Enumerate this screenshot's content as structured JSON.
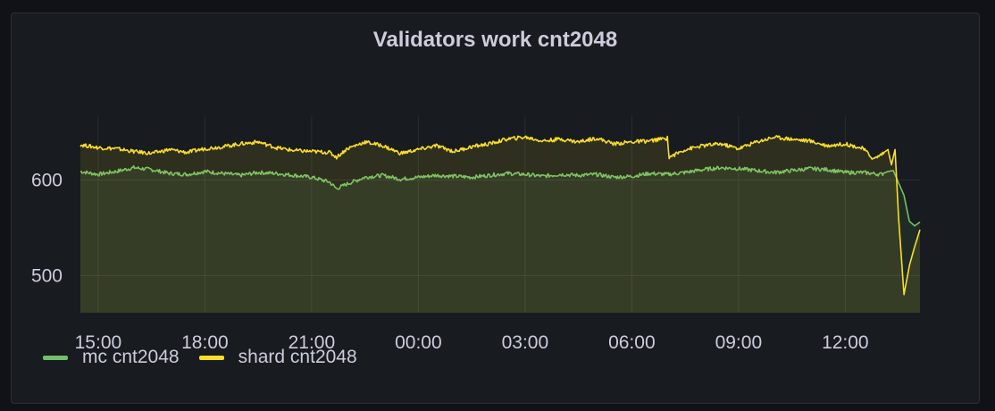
{
  "panel": {
    "title": "Validators work cnt2048"
  },
  "chart_data": {
    "type": "line",
    "title": "Validators work cnt2048",
    "xlabel": "",
    "ylabel": "",
    "x_range": [
      "14:30",
      "14:10 (next day)"
    ],
    "x_ticks": [
      "15:00",
      "18:00",
      "21:00",
      "00:00",
      "03:00",
      "06:00",
      "09:00",
      "12:00"
    ],
    "x_tick_hours": [
      0.5,
      3.5,
      6.5,
      9.5,
      12.5,
      15.5,
      18.5,
      21.5
    ],
    "y_ticks": [
      500,
      600
    ],
    "ylim": [
      461,
      667
    ],
    "grid": true,
    "legend": "bottom-left",
    "fill": "area",
    "series": [
      {
        "name": "mc cnt2048",
        "color": "#73bf69",
        "x_hours": [
          0,
          0.5,
          1,
          1.5,
          2,
          2.5,
          3,
          3.5,
          4,
          4.5,
          5,
          5.5,
          6,
          6.5,
          7,
          7.2,
          7.5,
          8,
          8.5,
          9,
          9.5,
          10,
          10.5,
          11,
          11.5,
          12,
          12.5,
          13,
          13.5,
          14,
          14.5,
          15,
          15.5,
          16,
          16.5,
          17,
          17.5,
          18,
          18.5,
          19,
          19.5,
          20,
          20.5,
          21,
          21.5,
          22,
          22.5,
          22.7,
          22.85,
          23.0,
          23.15,
          23.3,
          23.45,
          23.6
        ],
        "values": [
          609,
          606,
          609,
          613,
          611,
          607,
          606,
          609,
          607,
          605,
          608,
          607,
          605,
          603,
          598,
          591,
          596,
          603,
          605,
          601,
          603,
          605,
          604,
          603,
          605,
          607,
          606,
          604,
          606,
          605,
          606,
          603,
          604,
          607,
          606,
          608,
          611,
          613,
          612,
          610,
          608,
          610,
          612,
          611,
          608,
          608,
          606,
          609,
          610,
          597,
          584,
          557,
          552,
          556
        ]
      },
      {
        "name": "shard cnt2048",
        "color": "#fade2a",
        "x_hours": [
          0,
          0.5,
          1,
          1.5,
          2,
          2.5,
          3,
          3.5,
          4,
          4.5,
          5,
          5.5,
          6,
          6.5,
          7,
          7.2,
          7.5,
          8,
          8.5,
          9,
          9.5,
          10,
          10.5,
          11,
          11.5,
          12,
          12.5,
          13,
          13.5,
          14,
          14.5,
          15,
          15.5,
          16,
          16.5,
          16.55,
          17,
          17.5,
          18,
          18.5,
          19,
          19.5,
          20,
          20.5,
          21,
          21.5,
          22,
          22.3,
          22.55,
          22.7,
          22.8,
          22.9,
          23.0,
          23.15,
          23.3,
          23.45,
          23.6
        ],
        "values": [
          637,
          634,
          633,
          630,
          628,
          632,
          629,
          633,
          635,
          638,
          640,
          634,
          631,
          630,
          629,
          624,
          633,
          640,
          636,
          628,
          632,
          636,
          630,
          635,
          638,
          643,
          645,
          641,
          643,
          640,
          644,
          638,
          640,
          641,
          644,
          624,
          632,
          636,
          638,
          633,
          640,
          645,
          643,
          641,
          636,
          638,
          633,
          622,
          628,
          632,
          616,
          632,
          560,
          480,
          510,
          530,
          548
        ]
      }
    ]
  }
}
